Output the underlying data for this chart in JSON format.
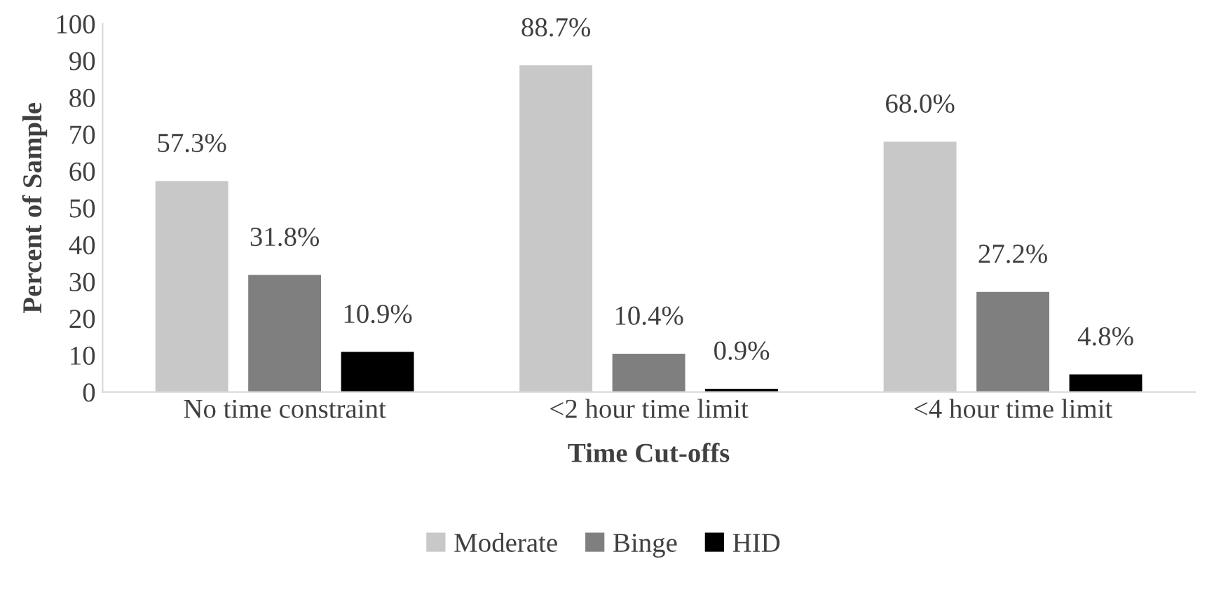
{
  "chart_data": {
    "type": "bar",
    "xlabel": "Time Cut-offs",
    "ylabel": "Percent of Sample",
    "categories": [
      "No time constraint",
      "<2 hour time limit",
      "<4 hour time limit"
    ],
    "series": [
      {
        "name": "Moderate",
        "color": "#c8c8c8",
        "values": [
          57.3,
          88.7,
          68.0
        ],
        "value_labels": [
          "57.3%",
          "88.7%",
          "68.0%"
        ]
      },
      {
        "name": "Binge",
        "color": "#7f7f7f",
        "values": [
          31.8,
          10.4,
          27.2
        ],
        "value_labels": [
          "31.8%",
          "10.4%",
          "27.2%"
        ]
      },
      {
        "name": "HID",
        "color": "#000000",
        "values": [
          10.9,
          0.9,
          4.8
        ],
        "value_labels": [
          "10.9%",
          "0.9%",
          "4.8%"
        ]
      }
    ],
    "ylim": [
      0,
      100
    ],
    "yticks": [
      0,
      10,
      20,
      30,
      40,
      50,
      60,
      70,
      80,
      90,
      100
    ],
    "grid": false,
    "legend": "bottom"
  }
}
